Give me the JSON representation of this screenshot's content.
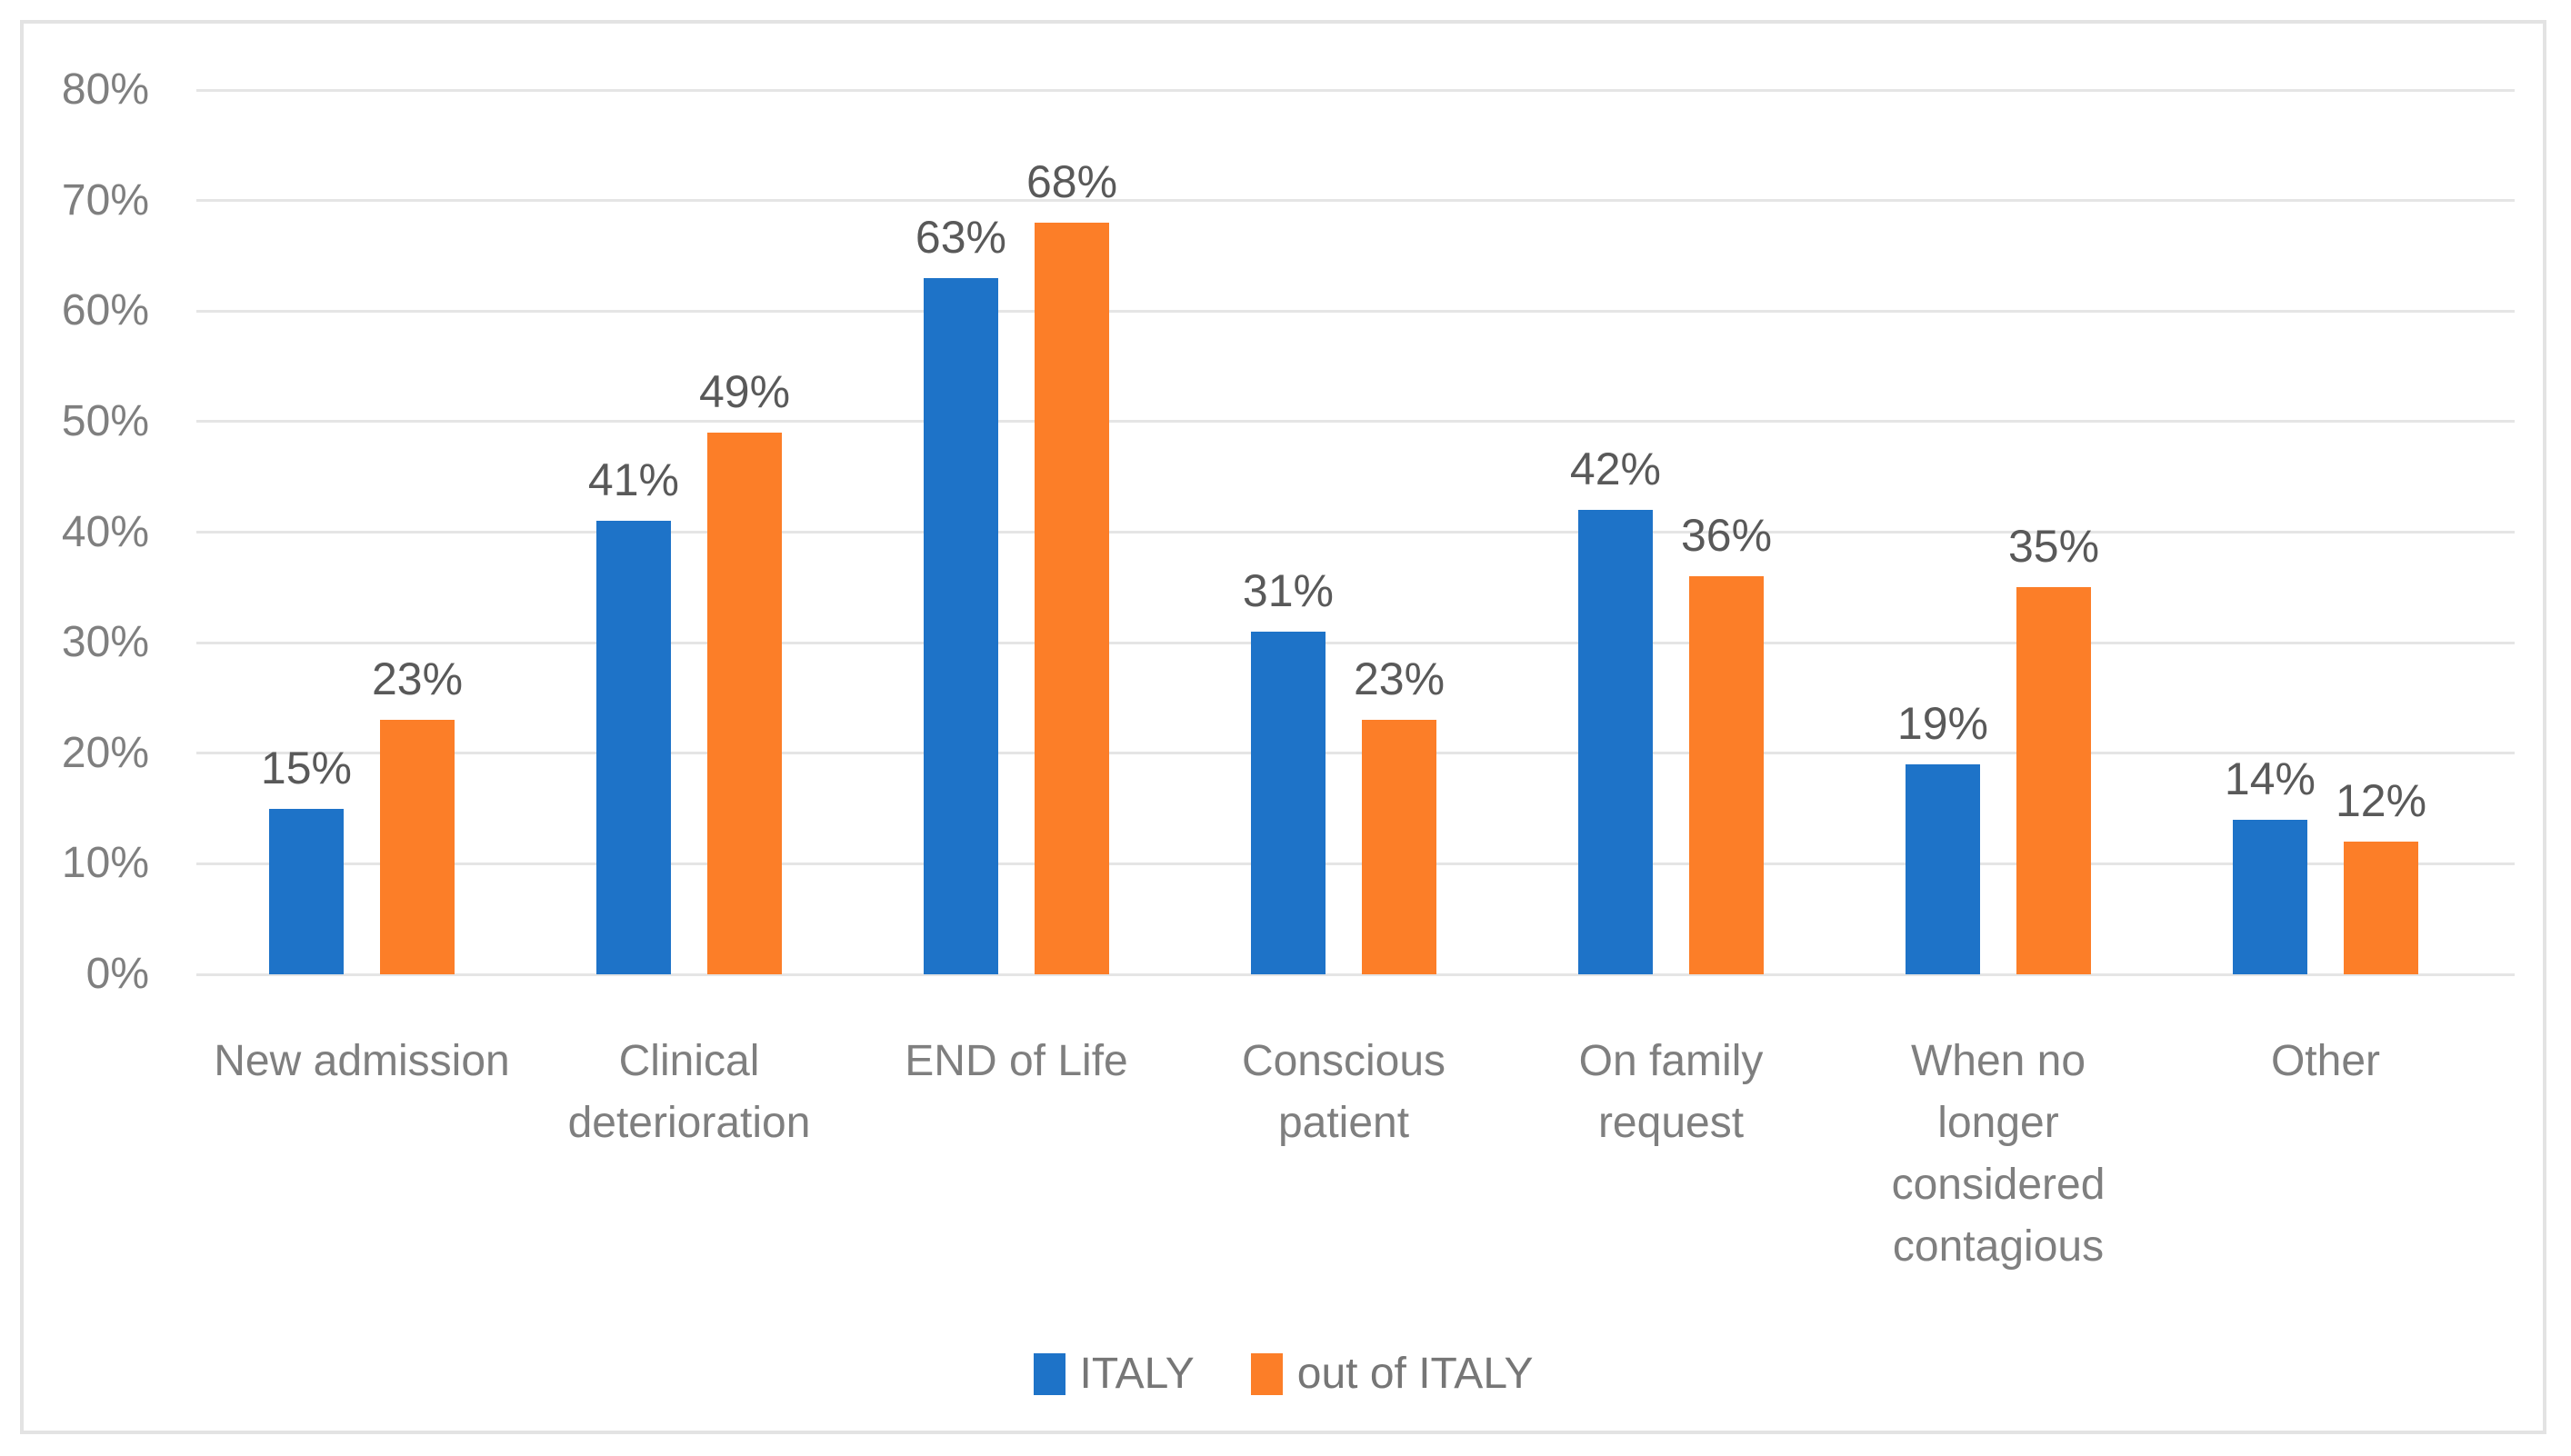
{
  "chart_data": {
    "type": "bar",
    "title": "",
    "xlabel": "",
    "ylabel": "",
    "categories": [
      "New admission",
      "Clinical deterioration",
      "END of Life",
      "Conscious patient",
      "On family request",
      "When no longer considered contagious",
      "Other"
    ],
    "category_label_lines": [
      "New admission",
      "Clinical\ndeterioration",
      "END of Life",
      "Conscious\npatient",
      "On family\nrequest",
      "When no\nlonger\nconsidered\ncontagious",
      "Other"
    ],
    "series": [
      {
        "name": "ITALY",
        "color": "#1E73C8",
        "values": [
          15,
          41,
          63,
          31,
          42,
          19,
          14
        ]
      },
      {
        "name": "out of ITALY",
        "color": "#FC7E28",
        "values": [
          23,
          49,
          68,
          23,
          36,
          35,
          12
        ]
      }
    ],
    "data_labels": [
      [
        "15%",
        "41%",
        "63%",
        "31%",
        "42%",
        "19%",
        "14%"
      ],
      [
        "23%",
        "49%",
        "68%",
        "23%",
        "36%",
        "35%",
        "12%"
      ]
    ],
    "value_suffix": "%",
    "ylim": [
      0,
      80
    ],
    "ytick_step": 10,
    "ytick_labels": [
      "0%",
      "10%",
      "20%",
      "30%",
      "40%",
      "50%",
      "60%",
      "70%",
      "80%"
    ],
    "grid": "horizontal",
    "legend_position": "bottom",
    "palette": {
      "gridline_color": "#E5E5E5",
      "frame_border_color": "#E3E3E3",
      "axis_text_color": "#7F7F7F",
      "data_label_color": "#595959",
      "legend_text_color": "#767676",
      "background": "#FFFFFF"
    }
  }
}
